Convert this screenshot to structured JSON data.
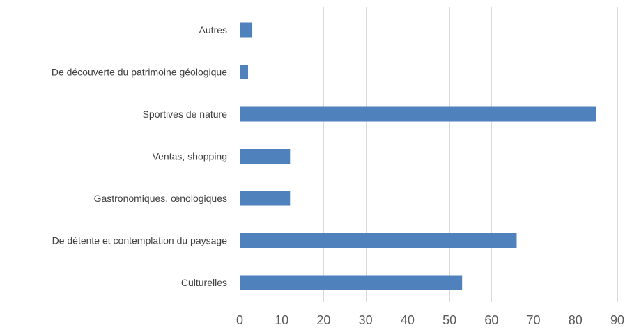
{
  "chart_data": {
    "type": "bar",
    "orientation": "horizontal",
    "categories": [
      "Autres",
      "De découverte du patrimoine géologique",
      "Sportives de nature",
      "Ventas, shopping",
      "Gastronomiques, œnologiques",
      "De détente et contemplation du paysage",
      "Culturelles"
    ],
    "values": [
      3,
      2,
      85,
      12,
      12,
      66,
      53
    ],
    "xlim": [
      0,
      90
    ],
    "xticks": [
      0,
      10,
      20,
      30,
      40,
      50,
      60,
      70,
      80,
      90
    ],
    "grid": "vertical",
    "legend": "none",
    "title": "",
    "xlabel": "",
    "ylabel": "",
    "bar_color": "#4f81bd"
  }
}
